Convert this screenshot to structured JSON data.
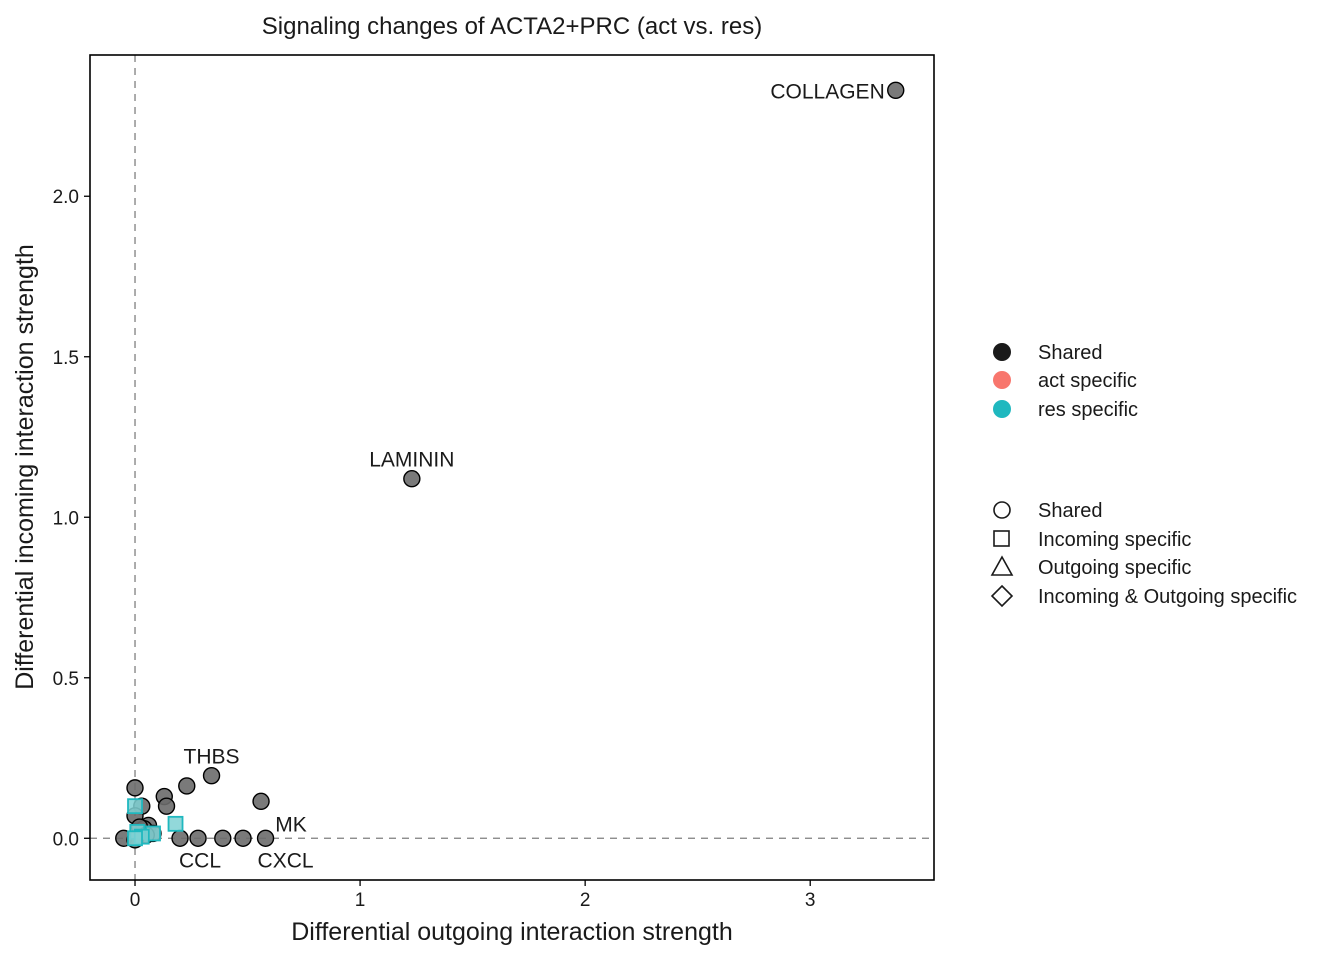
{
  "chart_data": {
    "type": "scatter",
    "title": "Signaling changes of ACTA2+PRC (act vs. res)",
    "xlabel": "Differential outgoing interaction strength",
    "ylabel": "Differential incoming interaction strength",
    "xlim": [
      -0.2,
      3.55
    ],
    "ylim": [
      -0.13,
      2.44
    ],
    "x_ticks": [
      0,
      1,
      2,
      3
    ],
    "y_ticks": [
      0.0,
      0.5,
      1.0,
      1.5,
      2.0
    ],
    "x_tick_labels": [
      "0",
      "1",
      "2",
      "3"
    ],
    "y_tick_labels": [
      "0.0",
      "0.5",
      "1.0",
      "1.5",
      "2.0"
    ],
    "reference_lines": {
      "x": 0,
      "y": 0,
      "style": "dashed"
    },
    "grid": false,
    "colors": {
      "shared": "#6b6b6b",
      "act": "#F8766D",
      "res": "#1FB8BF",
      "res_fill": "#7FD1D4",
      "frame": "#000000",
      "refline": "#7f7f7f"
    },
    "points": [
      {
        "x": 3.38,
        "y": 2.33,
        "group": "Shared",
        "shape": "Shared",
        "label": "COLLAGEN",
        "label_pos": "left"
      },
      {
        "x": 1.23,
        "y": 1.12,
        "group": "Shared",
        "shape": "Shared",
        "label": "LAMININ",
        "label_pos": "above"
      },
      {
        "x": 0.34,
        "y": 0.195,
        "group": "Shared",
        "shape": "Shared",
        "label": "THBS",
        "label_pos": "above"
      },
      {
        "x": 0.56,
        "y": 0.115,
        "group": "Shared",
        "shape": "Shared",
        "label": "MK",
        "label_pos": "below-right"
      },
      {
        "x": 0.58,
        "y": 0.0,
        "group": "Shared",
        "shape": "Shared",
        "label": "CXCL",
        "label_pos": "below-right"
      },
      {
        "x": 0.2,
        "y": 0.0,
        "group": "Shared",
        "shape": "Shared",
        "label": "CCL",
        "label_pos": "below-right"
      },
      {
        "x": 0.23,
        "y": 0.163,
        "group": "Shared",
        "shape": "Shared"
      },
      {
        "x": 0.13,
        "y": 0.13,
        "group": "Shared",
        "shape": "Shared"
      },
      {
        "x": 0.14,
        "y": 0.1,
        "group": "Shared",
        "shape": "Shared"
      },
      {
        "x": 0.0,
        "y": 0.157,
        "group": "Shared",
        "shape": "Shared"
      },
      {
        "x": 0.03,
        "y": 0.1,
        "group": "Shared",
        "shape": "Shared"
      },
      {
        "x": 0.0,
        "y": 0.07,
        "group": "Shared",
        "shape": "Shared"
      },
      {
        "x": 0.06,
        "y": 0.04,
        "group": "Shared",
        "shape": "Shared"
      },
      {
        "x": 0.04,
        "y": 0.03,
        "group": "Shared",
        "shape": "Shared"
      },
      {
        "x": 0.02,
        "y": 0.035,
        "group": "Shared",
        "shape": "Shared"
      },
      {
        "x": 0.08,
        "y": 0.015,
        "group": "Shared",
        "shape": "Shared"
      },
      {
        "x": 0.05,
        "y": 0.01,
        "group": "Shared",
        "shape": "Shared"
      },
      {
        "x": -0.05,
        "y": 0.0,
        "group": "Shared",
        "shape": "Shared"
      },
      {
        "x": 0.0,
        "y": -0.005,
        "group": "Shared",
        "shape": "Shared"
      },
      {
        "x": 0.28,
        "y": 0.0,
        "group": "Shared",
        "shape": "Shared"
      },
      {
        "x": 0.39,
        "y": 0.0,
        "group": "Shared",
        "shape": "Shared"
      },
      {
        "x": 0.48,
        "y": 0.0,
        "group": "Shared",
        "shape": "Shared"
      },
      {
        "x": 0.0,
        "y": 0.1,
        "group": "res specific",
        "shape": "Incoming specific"
      },
      {
        "x": 0.18,
        "y": 0.045,
        "group": "res specific",
        "shape": "Incoming specific"
      },
      {
        "x": 0.08,
        "y": 0.015,
        "group": "res specific",
        "shape": "Incoming specific"
      },
      {
        "x": 0.01,
        "y": 0.02,
        "group": "res specific",
        "shape": "Incoming specific"
      },
      {
        "x": 0.03,
        "y": 0.005,
        "group": "res specific",
        "shape": "Incoming specific"
      },
      {
        "x": 0.0,
        "y": 0.0,
        "group": "res specific",
        "shape": "Incoming specific"
      }
    ]
  },
  "legend": {
    "color_items": [
      {
        "label": "Shared",
        "color": "#1a1a1a"
      },
      {
        "label": "act specific",
        "color": "#F8766D"
      },
      {
        "label": "res specific",
        "color": "#1FB8BF"
      }
    ],
    "shape_items": [
      {
        "label": "Shared",
        "shape": "circle"
      },
      {
        "label": "Incoming specific",
        "shape": "square"
      },
      {
        "label": "Outgoing specific",
        "shape": "triangle"
      },
      {
        "label": "Incoming & Outgoing specific",
        "shape": "diamond"
      }
    ]
  }
}
